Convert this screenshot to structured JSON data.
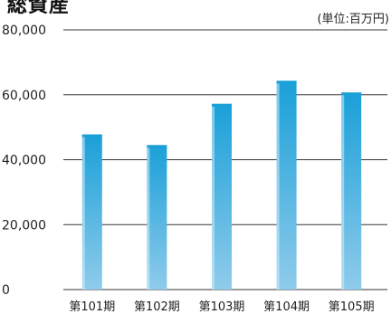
{
  "chart_data": {
    "type": "bar",
    "title": "総資産",
    "unit_label": "(単位:百万円)",
    "categories": [
      "第101期",
      "第102期",
      "第103期",
      "第104期",
      "第105期"
    ],
    "values": [
      47800,
      44500,
      57200,
      64300,
      60700
    ],
    "ylim": [
      0,
      80000
    ],
    "yticks": [
      0,
      20000,
      40000,
      60000,
      80000
    ],
    "ytick_labels": [
      "0",
      "20,000",
      "40,000",
      "60,000",
      "80,000"
    ],
    "grid": true
  },
  "colors": {
    "bar_top": "#1aa0d8",
    "bar_bottom": "#8fcbeb",
    "bar_highlight": "#d4eef9",
    "gridline": "#333333",
    "text": "#222222"
  }
}
